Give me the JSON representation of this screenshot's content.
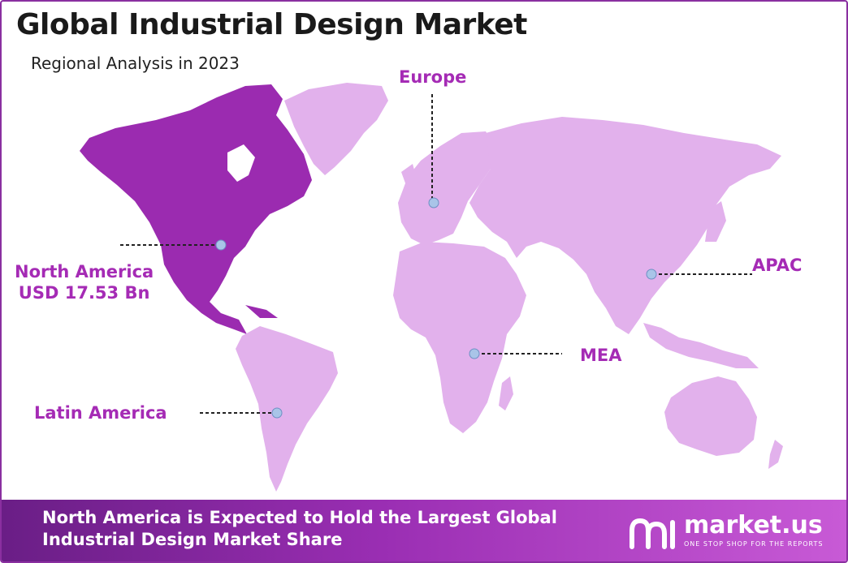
{
  "header": {
    "title": "Global Industrial Design Market",
    "subtitle": "Regional Analysis in 2023"
  },
  "regions": {
    "north_america": {
      "name": "North America",
      "value": "USD 17.53 Bn",
      "highlight": true
    },
    "latin_america": {
      "name": "Latin America"
    },
    "europe": {
      "name": "Europe"
    },
    "apac": {
      "name": "APAC"
    },
    "mea": {
      "name": "MEA"
    }
  },
  "footer": {
    "line1": "North America is Expected to Hold the Largest Global",
    "line2": "Industrial Design Market Share"
  },
  "logo": {
    "name": "market.us",
    "tagline": "ONE STOP SHOP FOR THE REPORTS",
    "icon": "market-us-logo-icon"
  },
  "colors": {
    "highlight_region": "#9b2bb0",
    "other_regions": "#e2b1ec",
    "label": "#a52bb5",
    "marker": "#a9c4e8",
    "footer_gradient": [
      "#6a1e86",
      "#c85ad6"
    ]
  }
}
